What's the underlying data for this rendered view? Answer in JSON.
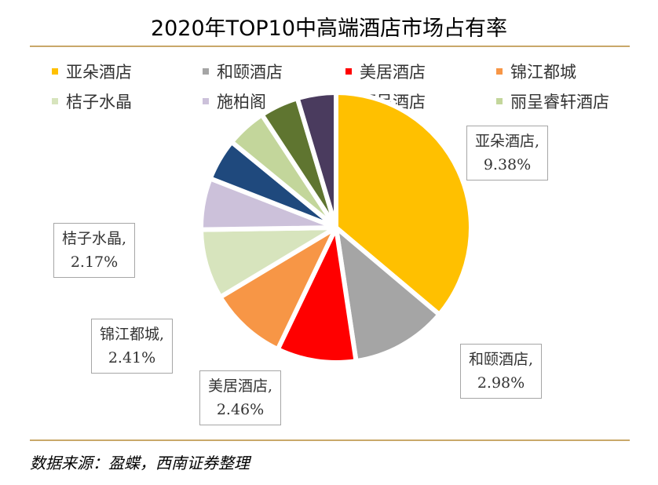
{
  "chart_data": {
    "type": "pie",
    "title": "2020年TOP10中高端酒店市场占有率",
    "unit": "%",
    "slices": [
      {
        "name": "亚朵酒店",
        "value": 9.38,
        "color": "#ffc000",
        "label": "9.38%"
      },
      {
        "name": "和颐酒店",
        "value": 2.98,
        "color": "#a5a5a5",
        "label": "2.98%"
      },
      {
        "name": "美居酒店",
        "value": 2.46,
        "color": "#ff0000",
        "label": "2.46%"
      },
      {
        "name": "锦江都城",
        "value": 2.41,
        "color": "#f79646",
        "label": "2.41%"
      },
      {
        "name": "桔子水晶",
        "value": 2.17,
        "color": "#d7e4bd",
        "label": "2.17%"
      },
      {
        "name": "施柏阁",
        "value": 1.6,
        "color": "#ccc1da",
        "label": ""
      },
      {
        "name": "丽呈酒店",
        "value": 1.3,
        "color": "#1f497d",
        "label": ""
      },
      {
        "name": "丽呈睿轩酒店",
        "value": 1.25,
        "color": "#c3d69b",
        "label": ""
      },
      {
        "name": "",
        "value": 1.2,
        "color": "#5f7530",
        "label": ""
      },
      {
        "name": "",
        "value": 1.2,
        "color": "#4a3b5e",
        "label": ""
      }
    ],
    "legend": [
      "亚朵酒店",
      "和颐酒店",
      "美居酒店",
      "锦江都城",
      "桔子水晶",
      "施柏阁",
      "丽呈酒店",
      "丽呈睿轩酒店"
    ],
    "legend_placement": "top"
  },
  "labels": [
    {
      "name": "亚朵酒店,",
      "value": "9.38%"
    },
    {
      "name": "和颐酒店,",
      "value": "2.98%"
    },
    {
      "name": "美居酒店,",
      "value": "2.46%"
    },
    {
      "name": "锦江都城,",
      "value": "2.41%"
    },
    {
      "name": "桔子水晶,",
      "value": "2.17%"
    }
  ],
  "source": "数据来源：盈蝶，西南证券整理"
}
